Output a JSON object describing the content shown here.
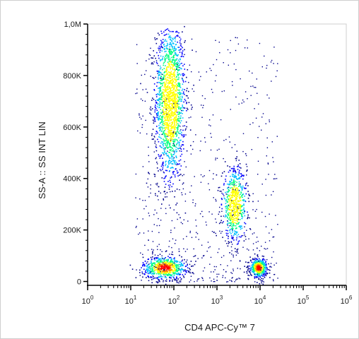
{
  "chart_data": {
    "type": "scatter",
    "style": "flow cytometry density dot plot",
    "xlabel": "CD4 APC-Cy™ 7",
    "ylabel": "SS-A :: SS INT LIN",
    "x_scale": "log",
    "x_range": [
      1,
      1000000
    ],
    "x_ticks": [
      {
        "value": 1,
        "base": "10",
        "exp": "0"
      },
      {
        "value": 10,
        "base": "10",
        "exp": "1"
      },
      {
        "value": 100,
        "base": "10",
        "exp": "2"
      },
      {
        "value": 1000,
        "base": "10",
        "exp": "3"
      },
      {
        "value": 10000,
        "base": "10",
        "exp": "4"
      },
      {
        "value": 100000,
        "base": "10",
        "exp": "5"
      },
      {
        "value": 1000000,
        "base": "10",
        "exp": "6"
      }
    ],
    "y_scale": "linear",
    "y_range": [
      -15000,
      1000000
    ],
    "y_ticks": [
      {
        "value": 0,
        "label": "0"
      },
      {
        "value": 200000,
        "label": "200K"
      },
      {
        "value": 400000,
        "label": "400K"
      },
      {
        "value": 600000,
        "label": "600K"
      },
      {
        "value": 800000,
        "label": "800K"
      },
      {
        "value": 1000000,
        "label": "1,0M"
      }
    ],
    "grid": false,
    "populations": [
      {
        "center": [
          80,
          700000
        ],
        "spread": [
          0.17,
          150000
        ],
        "density": "high"
      },
      {
        "center": [
          60,
          55000
        ],
        "spread": [
          0.25,
          22000
        ],
        "density": "very high"
      },
      {
        "center": [
          2500,
          300000
        ],
        "spread": [
          0.14,
          70000
        ],
        "density": "medium"
      },
      {
        "center": [
          9000,
          55000
        ],
        "spread": [
          0.1,
          18000
        ],
        "density": "very high"
      }
    ],
    "colormap": [
      "#00008b",
      "#0000ff",
      "#00bfff",
      "#00ff80",
      "#ffff00",
      "#ff8000",
      "#ff0000"
    ]
  }
}
